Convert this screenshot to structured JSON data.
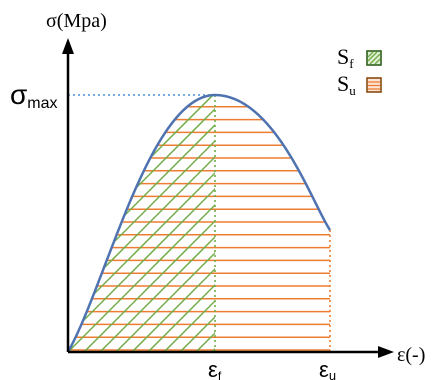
{
  "axes": {
    "y_label": "σ(Mpa)",
    "x_label": "ε(-)",
    "sigma_symbol": "σ",
    "sigma_subscript": "max",
    "eps_symbol": "ε",
    "eps_f_subscript": "f",
    "eps_u_subscript": "u"
  },
  "legend": {
    "items": [
      {
        "symbol": "S",
        "subscript": "f",
        "hatch": "diagonal"
      },
      {
        "symbol": "S",
        "subscript": "u",
        "hatch": "horizontal"
      }
    ]
  },
  "colors": {
    "curve": "#4f73b0",
    "green_hatch": "#70ad47",
    "orange_hatch": "#ed7d31",
    "dotted_line": "#4a90d9",
    "axis": "#000000"
  }
}
